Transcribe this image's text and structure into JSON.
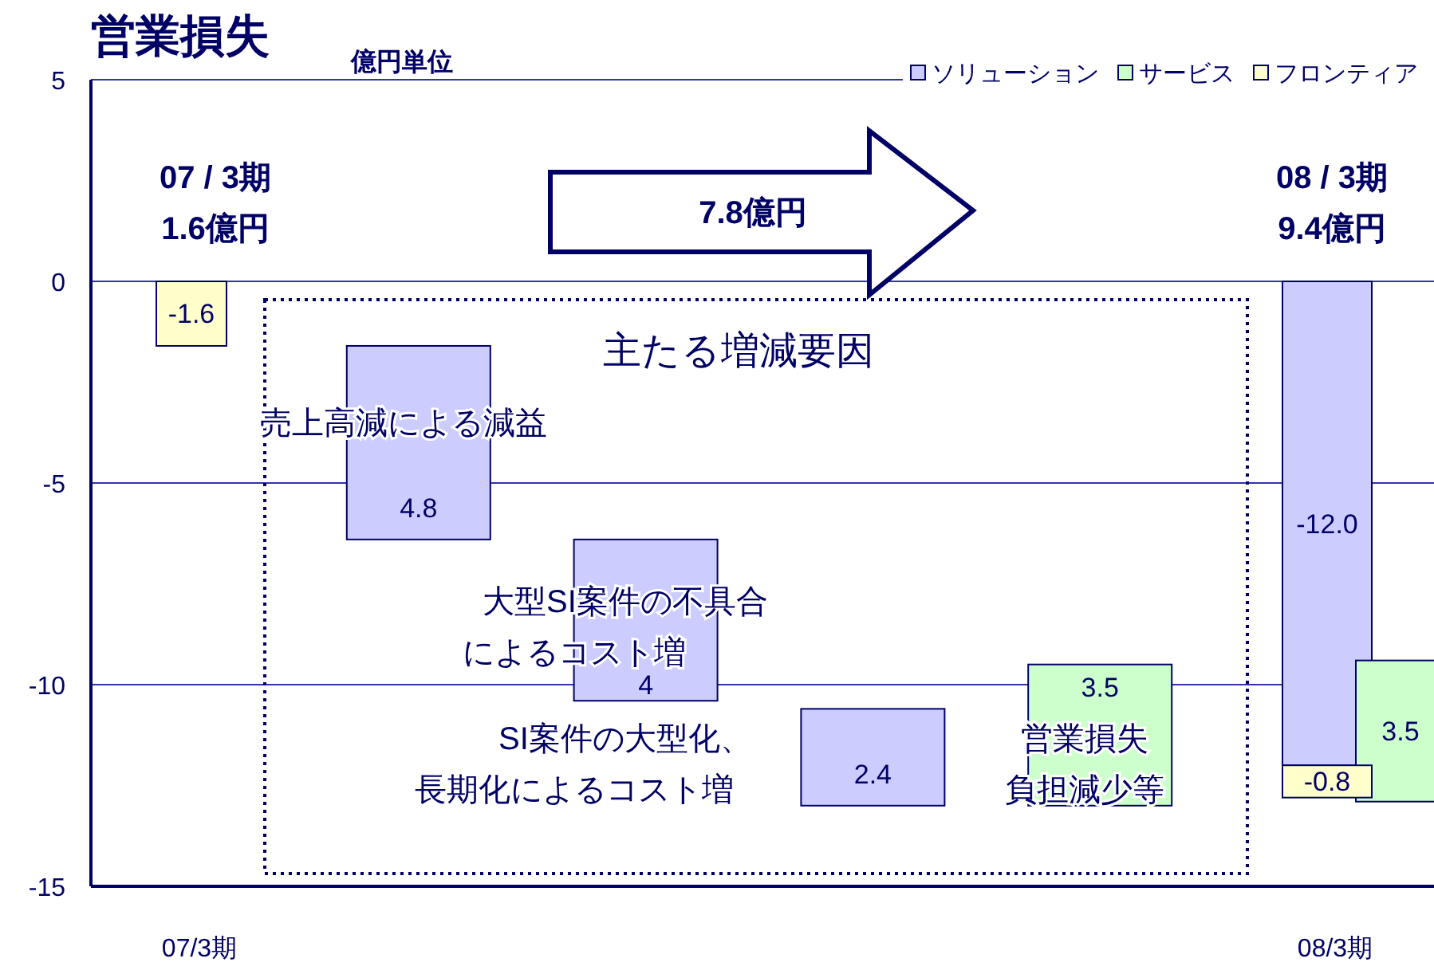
{
  "chart_data": {
    "type": "bar",
    "title": "営業損失",
    "subtitle": "億円単位",
    "categories": [
      "07/3期",
      null,
      null,
      null,
      null,
      "08/3期"
    ],
    "series": [
      {
        "name": "ソリューション",
        "color": "#ccccff",
        "values": [
          null,
          -4.8,
          -4,
          -2.4,
          null,
          -12.0
        ],
        "base": [
          null,
          -1.6,
          -6.4,
          -10.6,
          null,
          0
        ],
        "value_labels": [
          null,
          "4.8",
          "4",
          "2.4",
          null,
          "-12.0"
        ]
      },
      {
        "name": "サービス",
        "color": "#ccffcc",
        "values": [
          null,
          null,
          null,
          null,
          3.5,
          3.5
        ],
        "base": [
          null,
          null,
          null,
          null,
          -13.0,
          -12.9
        ],
        "value_labels": [
          null,
          null,
          null,
          null,
          "3.5",
          "3.5"
        ]
      },
      {
        "name": "フロンティア",
        "color": "#ffffcc",
        "values": [
          -1.6,
          null,
          null,
          null,
          null,
          -0.8
        ],
        "base": [
          0,
          null,
          null,
          null,
          null,
          -12.0
        ],
        "value_labels": [
          "-1.6",
          null,
          null,
          null,
          null,
          "-0.8"
        ]
      }
    ],
    "ylim": [
      -15,
      5
    ],
    "yticks": [
      -15,
      -10,
      -5,
      0,
      5
    ],
    "grid": "y",
    "legend": "top right",
    "annotations": [
      "07 / 3期",
      "1.6億円",
      "08 / 3期",
      "9.4億円",
      "7.8億円",
      "主たる増減要因",
      "売上高減による減益",
      "大型SI案件の不具合",
      "によるコスト増",
      "SI案件の大型化、",
      "長期化によるコスト増",
      "営業損失",
      "負担減少等"
    ]
  }
}
